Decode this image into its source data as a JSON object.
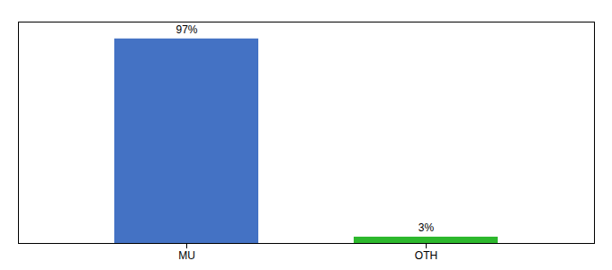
{
  "chart_data": {
    "type": "bar",
    "categories": [
      "MU",
      "OTH"
    ],
    "values": [
      97,
      3
    ],
    "value_labels": [
      "97%",
      "3%"
    ],
    "colors": [
      "#4472c4",
      "#2db82d"
    ],
    "ylim": [
      0,
      105
    ],
    "data_labels": true,
    "tick_labels": "x",
    "grid": false
  }
}
